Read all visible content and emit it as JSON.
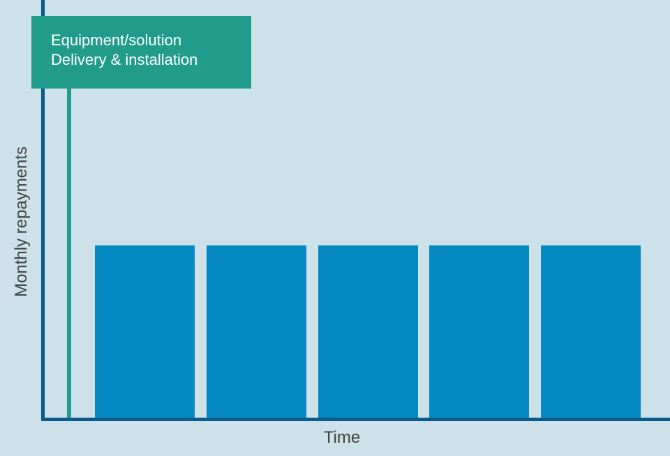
{
  "chart_data": {
    "type": "bar",
    "title": "",
    "xlabel": "Time",
    "ylabel": "Monthly repayments",
    "categories": [
      "",
      "",
      "",
      "",
      ""
    ],
    "values": [
      1,
      1,
      1,
      1,
      1
    ],
    "ylim": [
      0,
      2.43
    ],
    "grid": false,
    "legend": false,
    "annotation": "Equipment/solution Delivery & installation",
    "event_marker": {
      "position": "start-of-timeline",
      "label_line1": "Equipment/solution",
      "label_line2": "Delivery & installation"
    }
  },
  "callout": {
    "line1": "Equipment/solution",
    "line2": "Delivery & installation"
  },
  "axes": {
    "x_label": "Time",
    "y_label": "Monthly repayments"
  },
  "colors": {
    "background": "#CCE2E8",
    "bar": "#0489C2",
    "callout": "#219C8B",
    "axis": "#095B8D",
    "label_text": "#424242",
    "callout_text": "#FFFFFF"
  }
}
